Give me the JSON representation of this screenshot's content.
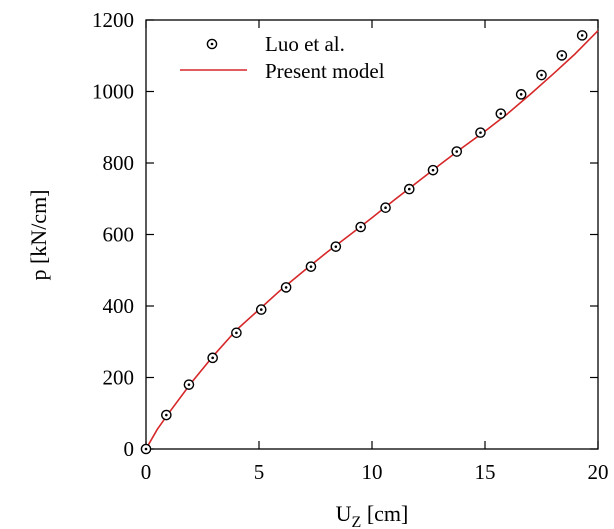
{
  "chart_data": {
    "type": "line",
    "title": "",
    "xlabel": "U",
    "xlabel_subscript": "Z",
    "xlabel_unit": " [cm]",
    "ylabel": "p [kN/cm]",
    "xlim": [
      0,
      20
    ],
    "ylim": [
      0,
      1200
    ],
    "xticks": [
      0,
      5,
      10,
      15,
      20
    ],
    "yticks": [
      0,
      200,
      400,
      600,
      800,
      1000,
      1200
    ],
    "grid": false,
    "legend_position": "top-left",
    "series": [
      {
        "name": "Luo et al.",
        "kind": "scatter",
        "marker": "circle-dot",
        "color": "#000000",
        "x": [
          0.0,
          0.9,
          1.9,
          2.95,
          4.0,
          5.1,
          6.2,
          7.3,
          8.4,
          9.5,
          10.6,
          11.65,
          12.7,
          13.75,
          14.8,
          15.7,
          16.6,
          17.5,
          18.4,
          19.3
        ],
        "y": [
          0,
          95,
          180,
          255,
          325,
          390,
          452,
          510,
          566,
          621,
          675,
          727,
          780,
          832,
          885,
          938,
          992,
          1046,
          1101,
          1157
        ]
      },
      {
        "name": "Present model",
        "kind": "line",
        "color": "#d62728",
        "x": [
          0.0,
          0.5,
          1.0,
          2.0,
          3.0,
          4.0,
          5.0,
          6.0,
          7.0,
          8.0,
          9.0,
          10.0,
          11.0,
          12.0,
          13.0,
          14.0,
          15.0,
          16.0,
          17.0,
          18.0,
          19.0,
          20.0
        ],
        "y": [
          0,
          55,
          100,
          185,
          262,
          333,
          390,
          447,
          499,
          550,
          598,
          647,
          697,
          746,
          795,
          843,
          889,
          938,
          992,
          1048,
          1106,
          1170
        ]
      }
    ]
  }
}
